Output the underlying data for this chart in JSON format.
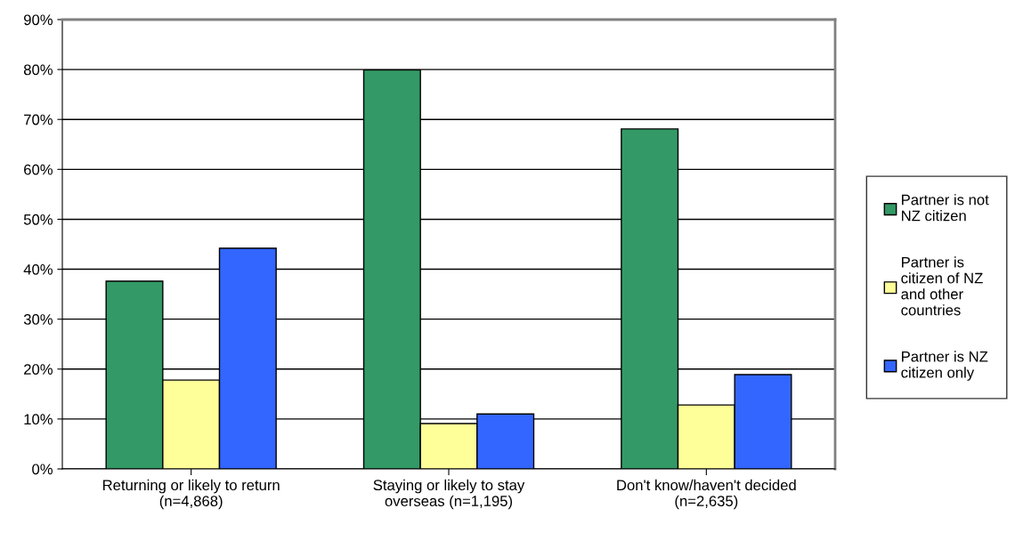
{
  "chart_data": {
    "type": "bar",
    "categories": [
      "Returning or likely to return\n(n=4,868)",
      "Staying or likely to stay\noverseas (n=1,195)",
      "Don't know/haven't decided\n(n=2,635)"
    ],
    "series": [
      {
        "name": "Partner is not\nNZ citizen",
        "color": "#339966",
        "values": [
          37.6,
          79.9,
          68.1
        ]
      },
      {
        "name": "Partner is\ncitizen of NZ\nand other\ncountries",
        "color": "#ffff99",
        "values": [
          17.8,
          9.1,
          12.8
        ]
      },
      {
        "name": "Partner is NZ\ncitizen only",
        "color": "#3366ff",
        "values": [
          44.2,
          11.0,
          18.9
        ]
      }
    ],
    "ylim": [
      0,
      90
    ],
    "yticks": [
      {
        "value": 0,
        "label": "0%"
      },
      {
        "value": 10,
        "label": "10%"
      },
      {
        "value": 20,
        "label": "20%"
      },
      {
        "value": 30,
        "label": "30%"
      },
      {
        "value": 40,
        "label": "40%"
      },
      {
        "value": 50,
        "label": "50%"
      },
      {
        "value": 60,
        "label": "60%"
      },
      {
        "value": 70,
        "label": "70%"
      },
      {
        "value": 80,
        "label": "80%"
      },
      {
        "value": 90,
        "label": "90%"
      }
    ],
    "grid": "y",
    "legend": "right"
  }
}
